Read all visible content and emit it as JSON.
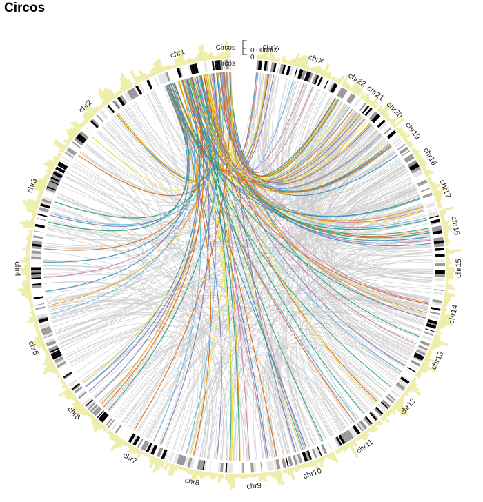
{
  "title": "Circos",
  "track_labels": {
    "outer": "Circos",
    "inner": "Circos"
  },
  "axis": {
    "tick_high": "0.000002",
    "tick_low": "0",
    "max_value": 2e-06
  },
  "colors": {
    "histogram": "#eeeeaa",
    "links_default": "#cccccc",
    "band_light": "#e6e6e6",
    "band_gray": "#999999",
    "band_dark": "#000000",
    "palette": [
      "#2b8cbe",
      "#e69f00",
      "#1a9e77",
      "#cc79a7",
      "#d95f02",
      "#f0e442",
      "#56b4e9",
      "#7570b3"
    ]
  },
  "chromosomes": [
    {
      "name": "chr1",
      "size": 249
    },
    {
      "name": "chr2",
      "size": 243
    },
    {
      "name": "chr3",
      "size": 198
    },
    {
      "name": "chr4",
      "size": 191
    },
    {
      "name": "chr5",
      "size": 181
    },
    {
      "name": "chr6",
      "size": 171
    },
    {
      "name": "chr7",
      "size": 159
    },
    {
      "name": "chr8",
      "size": 145
    },
    {
      "name": "chr9",
      "size": 138
    },
    {
      "name": "chr10",
      "size": 134
    },
    {
      "name": "chr11",
      "size": 135
    },
    {
      "name": "chr12",
      "size": 133
    },
    {
      "name": "chr13",
      "size": 115
    },
    {
      "name": "chr14",
      "size": 107
    },
    {
      "name": "chr15",
      "size": 102
    },
    {
      "name": "chr16",
      "size": 90
    },
    {
      "name": "chr17",
      "size": 81
    },
    {
      "name": "chr18",
      "size": 78
    },
    {
      "name": "chr19",
      "size": 59
    },
    {
      "name": "chr20",
      "size": 63
    },
    {
      "name": "chr21",
      "size": 48
    },
    {
      "name": "chr22",
      "size": 51
    },
    {
      "name": "chrX",
      "size": 155
    },
    {
      "name": "chrY",
      "size": 57
    }
  ]
}
